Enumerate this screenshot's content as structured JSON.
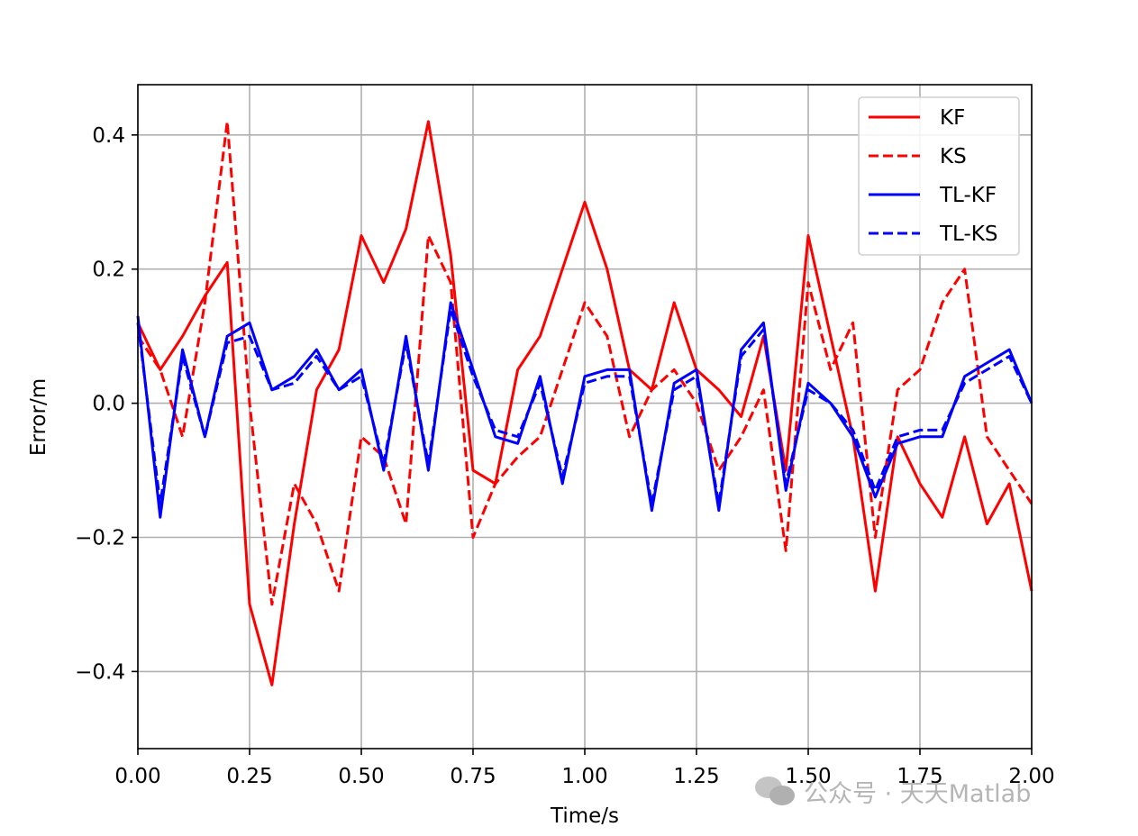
{
  "chart_data": {
    "type": "line",
    "xlabel": "Time/s",
    "ylabel": "Error/m",
    "xlim": [
      0,
      2
    ],
    "ylim": [
      -0.515,
      0.475
    ],
    "xticks": [
      0,
      0.25,
      0.5,
      0.75,
      1.0,
      1.25,
      1.5,
      1.75,
      2.0
    ],
    "xtick_labels": [
      "0.00",
      "0.25",
      "0.50",
      "0.75",
      "1.00",
      "1.25",
      "1.50",
      "1.75",
      "2.00"
    ],
    "yticks": [
      -0.4,
      -0.2,
      0.0,
      0.2,
      0.4
    ],
    "ytick_labels": [
      "−0.4",
      "−0.2",
      "0.0",
      "0.2",
      "0.4"
    ],
    "grid": true,
    "legend_position": "top-right",
    "x": [
      0.0,
      0.05,
      0.1,
      0.15,
      0.2,
      0.25,
      0.3,
      0.35,
      0.4,
      0.45,
      0.5,
      0.55,
      0.6,
      0.65,
      0.7,
      0.75,
      0.8,
      0.85,
      0.9,
      0.95,
      1.0,
      1.05,
      1.1,
      1.15,
      1.2,
      1.25,
      1.3,
      1.35,
      1.4,
      1.45,
      1.5,
      1.55,
      1.6,
      1.65,
      1.7,
      1.75,
      1.8,
      1.85,
      1.9,
      1.95,
      2.0
    ],
    "series": [
      {
        "name": "KF",
        "color": "#ff0000",
        "dash": "solid",
        "values": [
          0.12,
          0.05,
          0.1,
          0.16,
          0.21,
          -0.3,
          -0.42,
          -0.18,
          0.02,
          0.08,
          0.25,
          0.18,
          0.26,
          0.42,
          0.22,
          -0.1,
          -0.12,
          0.05,
          0.1,
          0.2,
          0.3,
          0.2,
          0.05,
          0.02,
          0.15,
          0.05,
          0.02,
          -0.02,
          0.1,
          -0.1,
          0.25,
          0.1,
          -0.05,
          -0.28,
          -0.05,
          -0.12,
          -0.17,
          -0.05,
          -0.18,
          -0.12,
          -0.28
        ]
      },
      {
        "name": "KS",
        "color": "#ff0000",
        "dash": "dashed",
        "values": [
          0.1,
          0.05,
          -0.05,
          0.15,
          0.42,
          0.0,
          -0.3,
          -0.12,
          -0.18,
          -0.28,
          -0.05,
          -0.08,
          -0.18,
          0.25,
          0.18,
          -0.2,
          -0.12,
          -0.08,
          -0.05,
          0.05,
          0.15,
          0.1,
          -0.05,
          0.02,
          0.05,
          0.0,
          -0.1,
          -0.05,
          0.02,
          -0.22,
          0.18,
          0.05,
          0.12,
          -0.2,
          0.02,
          0.05,
          0.15,
          0.2,
          -0.05,
          -0.1,
          -0.15
        ]
      },
      {
        "name": "TL-KF",
        "color": "#0000ff",
        "dash": "solid",
        "values": [
          0.13,
          -0.17,
          0.08,
          -0.05,
          0.1,
          0.12,
          0.02,
          0.04,
          0.08,
          0.02,
          0.05,
          -0.1,
          0.1,
          -0.1,
          0.15,
          0.05,
          -0.05,
          -0.06,
          0.04,
          -0.12,
          0.04,
          0.05,
          0.05,
          -0.16,
          0.03,
          0.05,
          -0.16,
          0.08,
          0.12,
          -0.13,
          0.03,
          0.0,
          -0.05,
          -0.14,
          -0.06,
          -0.05,
          -0.05,
          0.04,
          0.06,
          0.08,
          0.0
        ]
      },
      {
        "name": "TL-KS",
        "color": "#0000ff",
        "dash": "dashed",
        "values": [
          0.12,
          -0.15,
          0.07,
          -0.05,
          0.09,
          0.1,
          0.02,
          0.03,
          0.07,
          0.02,
          0.04,
          -0.09,
          0.09,
          -0.09,
          0.14,
          0.04,
          -0.04,
          -0.05,
          0.03,
          -0.11,
          0.03,
          0.04,
          0.04,
          -0.15,
          0.02,
          0.04,
          -0.15,
          0.07,
          0.11,
          -0.12,
          0.02,
          0.0,
          -0.04,
          -0.13,
          -0.05,
          -0.04,
          -0.04,
          0.03,
          0.05,
          0.07,
          0.0
        ]
      }
    ]
  },
  "watermark": {
    "icon": "wechat-icon",
    "text": "公众号 · 天天Matlab"
  }
}
